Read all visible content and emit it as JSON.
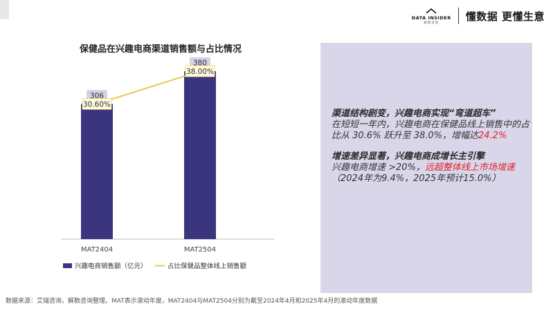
{
  "brand": {
    "logo_text": "DATA INSIDER",
    "logo_sub": "解数咨询",
    "slogan": "懂数据 更懂生意"
  },
  "colors": {
    "bar": "#3b3580",
    "line": "#e8c84a",
    "panel": "#d9d6ea",
    "highlight": "#e0202a"
  },
  "chart_data": {
    "type": "bar",
    "title": "保健品在兴趣电商渠道销售额与占比情况",
    "categories": [
      "MAT2404",
      "MAT2504"
    ],
    "series": [
      {
        "name": "兴趣电商销售额（亿元）",
        "type": "bar",
        "values": [
          306,
          380
        ],
        "labels": [
          "306",
          "380"
        ]
      },
      {
        "name": "占比保健品整体线上销售额",
        "type": "line",
        "values": [
          30.6,
          38.0
        ],
        "labels": [
          "30.60%",
          "38.00%"
        ]
      }
    ],
    "ylim": [
      0,
      380
    ],
    "y2lim": [
      0,
      38
    ],
    "legend": "bottom",
    "grid": false
  },
  "panel": {
    "paragraphs": [
      {
        "heading": "渠道结构剧变，兴趣电商实现“弯道超车”",
        "body": "在短短一年内，兴趣电商在保健品线上销售中的占比从 30.6% 跃升至 38.0%，增幅达",
        "highlight": "24.2%",
        "tail": ""
      },
      {
        "heading": "增速差异显著，兴趣电商成增长主引擎",
        "body": "兴趣电商增速 >20%，",
        "highlight": "远超整体线上市场增速",
        "tail": "（2024年为9.4%，2025年预计15.0%）"
      }
    ]
  },
  "source": "数据来源：艾瑞咨询，解数咨询整理。MAT表示滚动年度，MAT2404与MAT2504分别为截至2024年4月和2025年4月的滚动年度数据"
}
